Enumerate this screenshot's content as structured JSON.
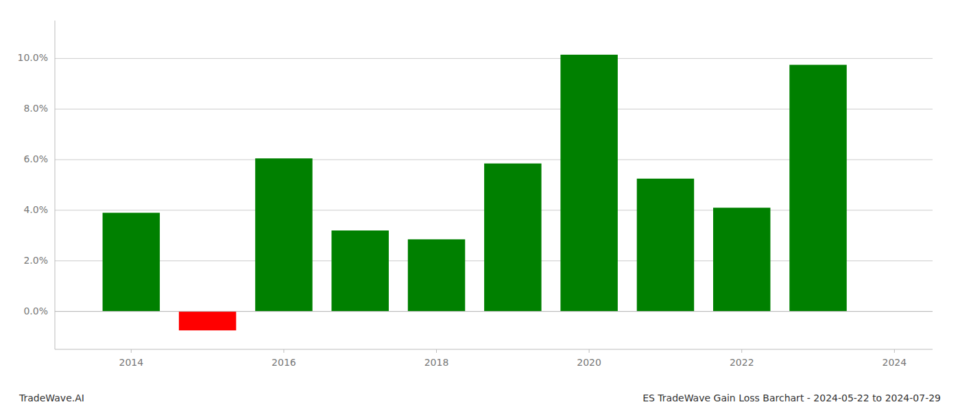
{
  "chart_data": {
    "type": "bar",
    "x": [
      2014,
      2015,
      2016,
      2017,
      2018,
      2019,
      2020,
      2021,
      2022,
      2023
    ],
    "values": [
      0.039,
      -0.0075,
      0.0605,
      0.032,
      0.0285,
      0.0585,
      0.1015,
      0.0525,
      0.041,
      0.0975
    ],
    "colors": [
      "#008000",
      "#ff0000",
      "#008000",
      "#008000",
      "#008000",
      "#008000",
      "#008000",
      "#008000",
      "#008000",
      "#008000"
    ],
    "xlim": [
      2013.0,
      2024.5
    ],
    "xticks": [
      2014,
      2016,
      2018,
      2020,
      2022,
      2024
    ],
    "ylim": [
      -0.015,
      0.115
    ],
    "yticks": [
      {
        "value": 0.0,
        "label": "0.0%"
      },
      {
        "value": 0.02,
        "label": "2.0%"
      },
      {
        "value": 0.04,
        "label": "4.0%"
      },
      {
        "value": 0.06,
        "label": "6.0%"
      },
      {
        "value": 0.08,
        "label": "8.0%"
      },
      {
        "value": 0.1,
        "label": "10.0%"
      }
    ],
    "grid": true,
    "annotations": [
      "TradeWave.AI",
      "ES TradeWave Gain Loss Barchart - 2024-05-22 to 2024-07-29"
    ]
  }
}
